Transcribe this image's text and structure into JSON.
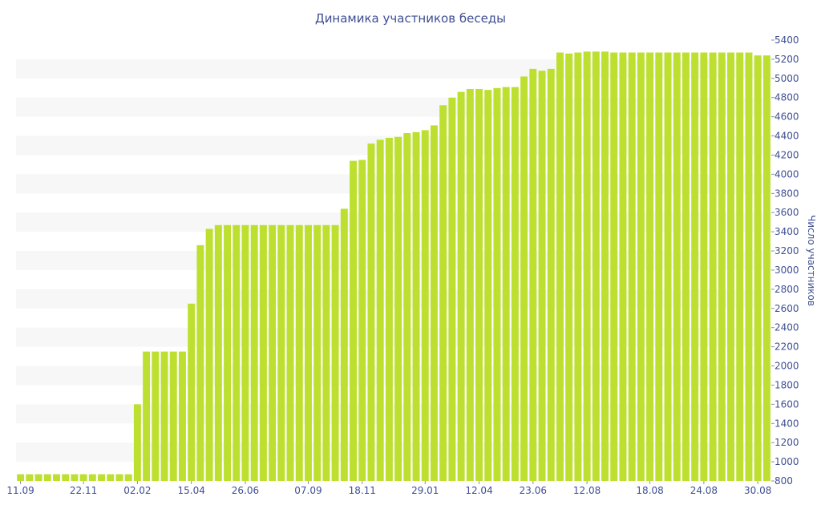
{
  "chart_data": {
    "type": "bar",
    "title": "Динамика участников беседы",
    "xlabel": "",
    "ylabel": "Число участников",
    "ylim": [
      800,
      5400
    ],
    "ytick_step": 200,
    "y_axis_position": "right",
    "grid": "alternating-horizontal-bands",
    "legend": "none",
    "colors": {
      "bar": "#bde030",
      "text": "#3e4e93",
      "band": "#f7f7f7"
    },
    "x_tick_labels": [
      {
        "index": 0,
        "label": "11.09"
      },
      {
        "index": 7,
        "label": "22.11"
      },
      {
        "index": 13,
        "label": "02.02"
      },
      {
        "index": 19,
        "label": "15.04"
      },
      {
        "index": 25,
        "label": "26.06"
      },
      {
        "index": 32,
        "label": "07.09"
      },
      {
        "index": 38,
        "label": "18.11"
      },
      {
        "index": 45,
        "label": "29.01"
      },
      {
        "index": 51,
        "label": "12.04"
      },
      {
        "index": 57,
        "label": "23.06"
      },
      {
        "index": 63,
        "label": "12.08"
      },
      {
        "index": 70,
        "label": "18.08"
      },
      {
        "index": 76,
        "label": "24.08"
      },
      {
        "index": 82,
        "label": "30.08"
      }
    ],
    "values": [
      870,
      870,
      870,
      870,
      870,
      870,
      870,
      870,
      870,
      870,
      870,
      870,
      870,
      1600,
      2150,
      2150,
      2150,
      2150,
      2150,
      2650,
      3260,
      3430,
      3470,
      3470,
      3470,
      3470,
      3470,
      3470,
      3470,
      3470,
      3470,
      3470,
      3470,
      3470,
      3470,
      3470,
      3640,
      4140,
      4150,
      4320,
      4360,
      4380,
      4390,
      4430,
      4440,
      4460,
      4510,
      4720,
      4800,
      4860,
      4890,
      4890,
      4880,
      4900,
      4910,
      4910,
      5020,
      5100,
      5080,
      5100,
      5270,
      5260,
      5270,
      5280,
      5280,
      5280,
      5270,
      5270,
      5270,
      5270,
      5270,
      5270,
      5270,
      5270,
      5270,
      5270,
      5270,
      5270,
      5270,
      5270,
      5270,
      5270,
      5240,
      5240
    ]
  }
}
